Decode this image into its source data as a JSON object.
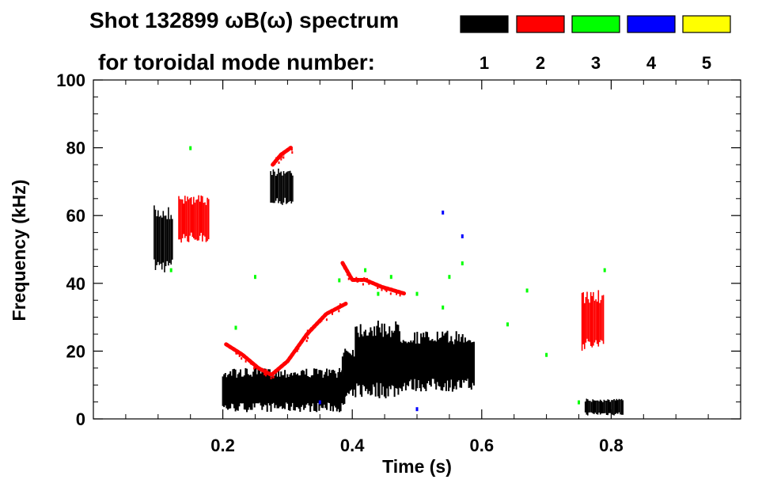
{
  "chart_data": {
    "type": "heatmap",
    "title_line1": "Shot 132899 ωB(ω) spectrum",
    "title_line2": "for toroidal mode number:",
    "xlabel": "Time (s)",
    "ylabel": "Frequency (kHz)",
    "xlim": [
      0.0,
      1.0
    ],
    "ylim": [
      0,
      100
    ],
    "x_ticks": [
      0.2,
      0.4,
      0.6,
      0.8
    ],
    "x_tick_labels": [
      "0.2",
      "0.4",
      "0.6",
      "0.8"
    ],
    "y_ticks": [
      0,
      20,
      40,
      60,
      80,
      100
    ],
    "y_tick_labels": [
      "0",
      "20",
      "40",
      "60",
      "80",
      "100"
    ],
    "legend": [
      {
        "label": "1",
        "color": "#000000"
      },
      {
        "label": "2",
        "color": "#ff0000"
      },
      {
        "label": "3",
        "color": "#00ff00"
      },
      {
        "label": "4",
        "color": "#0000ff"
      },
      {
        "label": "5",
        "color": "#ffff00"
      }
    ],
    "regions": [
      {
        "mode": 1,
        "kind": "blob",
        "t": [
          0.094,
          0.124
        ],
        "f": [
          43,
          63
        ]
      },
      {
        "mode": 1,
        "kind": "blob",
        "t": [
          0.274,
          0.31
        ],
        "f": [
          63,
          74
        ]
      },
      {
        "mode": 1,
        "kind": "band",
        "t": [
          0.2,
          0.39
        ],
        "f": [
          2,
          15
        ]
      },
      {
        "mode": 1,
        "kind": "band",
        "t": [
          0.385,
          0.405
        ],
        "f": [
          5,
          22
        ]
      },
      {
        "mode": 1,
        "kind": "band",
        "t": [
          0.405,
          0.475
        ],
        "f": [
          6,
          29
        ]
      },
      {
        "mode": 1,
        "kind": "band",
        "t": [
          0.475,
          0.59
        ],
        "f": [
          8,
          26
        ]
      },
      {
        "mode": 1,
        "kind": "blob",
        "t": [
          0.76,
          0.82
        ],
        "f": [
          1,
          6
        ]
      },
      {
        "mode": 2,
        "kind": "trace",
        "points": [
          [
            0.205,
            22
          ],
          [
            0.23,
            19
          ],
          [
            0.255,
            15
          ],
          [
            0.275,
            13
          ],
          [
            0.3,
            17
          ],
          [
            0.33,
            25
          ],
          [
            0.36,
            31
          ],
          [
            0.39,
            34
          ]
        ]
      },
      {
        "mode": 2,
        "kind": "trace",
        "points": [
          [
            0.385,
            46
          ],
          [
            0.4,
            41
          ],
          [
            0.42,
            41
          ],
          [
            0.445,
            39
          ],
          [
            0.48,
            37
          ]
        ]
      },
      {
        "mode": 2,
        "kind": "trace",
        "points": [
          [
            0.277,
            75
          ],
          [
            0.29,
            78
          ],
          [
            0.305,
            80
          ]
        ]
      },
      {
        "mode": 2,
        "kind": "blob",
        "t": [
          0.132,
          0.18
        ],
        "f": [
          52,
          66
        ]
      },
      {
        "mode": 2,
        "kind": "blob",
        "t": [
          0.755,
          0.79
        ],
        "f": [
          20,
          38
        ]
      },
      {
        "mode": 3,
        "kind": "scatter",
        "points": [
          [
            0.38,
            41
          ],
          [
            0.42,
            44
          ],
          [
            0.44,
            37
          ],
          [
            0.55,
            42
          ],
          [
            0.57,
            46
          ],
          [
            0.67,
            38
          ],
          [
            0.75,
            5
          ],
          [
            0.79,
            44
          ],
          [
            0.12,
            44
          ],
          [
            0.25,
            42
          ],
          [
            0.22,
            27
          ],
          [
            0.15,
            80
          ],
          [
            0.46,
            42
          ],
          [
            0.5,
            37
          ],
          [
            0.54,
            33
          ],
          [
            0.64,
            28
          ],
          [
            0.7,
            19
          ]
        ]
      },
      {
        "mode": 4,
        "kind": "scatter",
        "points": [
          [
            0.54,
            61
          ],
          [
            0.57,
            54
          ],
          [
            0.35,
            5
          ],
          [
            0.5,
            3
          ]
        ]
      }
    ]
  }
}
